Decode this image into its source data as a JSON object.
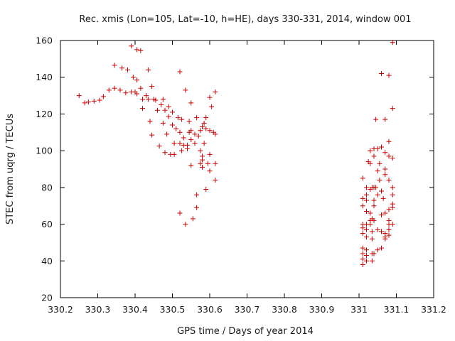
{
  "chart_data": {
    "type": "scatter",
    "title": "Rec. xmis (Lon=105, Lat=-10, h=HE), days 330-331, 2014, window 001",
    "xlabel": "GPS time / Days of year 2014",
    "ylabel": "STEC from uqrg / TECUs",
    "xlim": [
      330.2,
      331.2
    ],
    "ylim": [
      20,
      160
    ],
    "x_ticks": [
      330.2,
      330.3,
      330.4,
      330.5,
      330.6,
      330.7,
      330.8,
      330.9,
      331.0,
      331.1,
      331.2
    ],
    "x_tick_labels": [
      "330.2",
      "330.3",
      "330.4",
      "330.5",
      "330.6",
      "330.7",
      "330.8",
      "330.9",
      "331",
      "331.1",
      "331.2"
    ],
    "y_ticks": [
      20,
      40,
      60,
      80,
      100,
      120,
      140,
      160
    ],
    "y_tick_labels": [
      "20",
      "40",
      "60",
      "80",
      "100",
      "120",
      "140",
      "160"
    ],
    "grid": false,
    "marker": "+",
    "color": "#cc0000",
    "series": [
      {
        "points": [
          [
            330.25,
            130
          ],
          [
            330.265,
            126
          ],
          [
            330.275,
            126.5
          ],
          [
            330.29,
            127
          ],
          [
            330.305,
            127.5
          ],
          [
            330.315,
            129.5
          ],
          [
            330.33,
            133
          ],
          [
            330.345,
            134
          ],
          [
            330.345,
            146.5
          ],
          [
            330.36,
            133
          ],
          [
            330.365,
            145
          ],
          [
            330.375,
            131.5
          ],
          [
            330.38,
            144
          ],
          [
            330.39,
            132
          ],
          [
            330.39,
            157
          ],
          [
            330.395,
            140
          ],
          [
            330.4,
            132
          ],
          [
            330.405,
            131
          ],
          [
            330.405,
            138.5
          ],
          [
            330.405,
            155
          ],
          [
            330.415,
            154.5
          ],
          [
            330.415,
            134
          ],
          [
            330.42,
            128
          ],
          [
            330.42,
            123
          ],
          [
            330.43,
            130
          ],
          [
            330.435,
            144
          ],
          [
            330.435,
            128
          ],
          [
            330.44,
            116
          ],
          [
            330.445,
            135
          ],
          [
            330.445,
            108.5
          ],
          [
            330.45,
            128
          ],
          [
            330.455,
            127.5
          ],
          [
            330.46,
            122
          ],
          [
            330.465,
            102.5
          ],
          [
            330.47,
            125
          ],
          [
            330.475,
            128
          ],
          [
            330.475,
            115
          ],
          [
            330.48,
            122
          ],
          [
            330.48,
            99
          ],
          [
            330.485,
            109
          ],
          [
            330.49,
            124
          ],
          [
            330.49,
            118.5
          ],
          [
            330.495,
            98
          ],
          [
            330.5,
            121
          ],
          [
            330.5,
            114
          ],
          [
            330.505,
            104
          ],
          [
            330.505,
            98
          ],
          [
            330.51,
            112
          ],
          [
            330.515,
            118
          ],
          [
            330.52,
            110
          ],
          [
            330.52,
            143
          ],
          [
            330.52,
            104
          ],
          [
            330.52,
            66
          ],
          [
            330.525,
            117
          ],
          [
            330.525,
            100
          ],
          [
            330.53,
            107
          ],
          [
            330.53,
            103
          ],
          [
            330.535,
            133
          ],
          [
            330.535,
            60
          ],
          [
            330.54,
            101
          ],
          [
            330.54,
            103
          ],
          [
            330.545,
            116
          ],
          [
            330.545,
            110
          ],
          [
            330.55,
            106
          ],
          [
            330.55,
            111
          ],
          [
            330.55,
            126
          ],
          [
            330.55,
            92
          ],
          [
            330.555,
            63
          ],
          [
            330.56,
            109
          ],
          [
            330.56,
            104
          ],
          [
            330.565,
            118
          ],
          [
            330.565,
            76
          ],
          [
            330.565,
            69
          ],
          [
            330.57,
            108
          ],
          [
            330.575,
            111
          ],
          [
            330.575,
            100
          ],
          [
            330.575,
            93
          ],
          [
            330.58,
            113
          ],
          [
            330.58,
            97
          ],
          [
            330.58,
            95
          ],
          [
            330.58,
            91
          ],
          [
            330.585,
            115
          ],
          [
            330.585,
            104
          ],
          [
            330.59,
            118
          ],
          [
            330.59,
            112
          ],
          [
            330.59,
            79
          ],
          [
            330.595,
            93
          ],
          [
            330.6,
            129
          ],
          [
            330.6,
            111
          ],
          [
            330.6,
            98
          ],
          [
            330.6,
            89
          ],
          [
            330.605,
            124
          ],
          [
            330.61,
            110
          ],
          [
            330.615,
            132
          ],
          [
            330.615,
            109
          ],
          [
            330.615,
            93
          ],
          [
            330.615,
            84
          ],
          [
            331.01,
            85
          ],
          [
            331.01,
            74
          ],
          [
            331.01,
            70
          ],
          [
            331.01,
            60
          ],
          [
            331.01,
            58
          ],
          [
            331.01,
            55
          ],
          [
            331.01,
            47
          ],
          [
            331.01,
            44
          ],
          [
            331.01,
            41
          ],
          [
            331.01,
            38
          ],
          [
            331.02,
            80
          ],
          [
            331.02,
            76
          ],
          [
            331.02,
            73
          ],
          [
            331.02,
            67
          ],
          [
            331.02,
            60
          ],
          [
            331.02,
            57
          ],
          [
            331.02,
            53
          ],
          [
            331.02,
            46
          ],
          [
            331.02,
            43
          ],
          [
            331.02,
            40
          ],
          [
            331.025,
            94
          ],
          [
            331.03,
            100
          ],
          [
            331.03,
            93
          ],
          [
            331.03,
            79
          ],
          [
            331.03,
            66
          ],
          [
            331.03,
            62
          ],
          [
            331.03,
            60
          ],
          [
            331.035,
            80
          ],
          [
            331.035,
            63
          ],
          [
            331.035,
            56
          ],
          [
            331.035,
            52
          ],
          [
            331.035,
            44
          ],
          [
            331.035,
            40
          ],
          [
            331.04,
            101
          ],
          [
            331.04,
            97
          ],
          [
            331.04,
            80
          ],
          [
            331.04,
            73
          ],
          [
            331.04,
            70
          ],
          [
            331.04,
            62
          ],
          [
            331.04,
            44
          ],
          [
            331.045,
            117
          ],
          [
            331.045,
            80
          ],
          [
            331.05,
            101
          ],
          [
            331.05,
            89
          ],
          [
            331.05,
            76
          ],
          [
            331.05,
            57
          ],
          [
            331.05,
            46
          ],
          [
            331.055,
            93
          ],
          [
            331.055,
            84
          ],
          [
            331.06,
            142
          ],
          [
            331.06,
            102
          ],
          [
            331.06,
            78
          ],
          [
            331.06,
            65
          ],
          [
            331.06,
            56
          ],
          [
            331.06,
            47
          ],
          [
            331.065,
            74
          ],
          [
            331.07,
            99
          ],
          [
            331.07,
            117
          ],
          [
            331.07,
            90
          ],
          [
            331.07,
            87
          ],
          [
            331.07,
            66
          ],
          [
            331.07,
            55
          ],
          [
            331.07,
            53
          ],
          [
            331.07,
            52
          ],
          [
            331.08,
            141
          ],
          [
            331.08,
            105
          ],
          [
            331.08,
            97
          ],
          [
            331.08,
            84
          ],
          [
            331.08,
            68
          ],
          [
            331.08,
            62
          ],
          [
            331.08,
            60
          ],
          [
            331.08,
            57
          ],
          [
            331.08,
            54
          ],
          [
            331.09,
            159
          ],
          [
            331.09,
            123
          ],
          [
            331.09,
            96
          ],
          [
            331.09,
            80
          ],
          [
            331.09,
            76
          ],
          [
            331.09,
            71
          ],
          [
            331.09,
            69
          ],
          [
            331.09,
            60
          ]
        ]
      }
    ]
  }
}
